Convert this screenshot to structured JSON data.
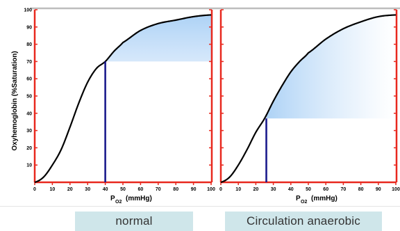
{
  "chart_data": [
    {
      "type": "line",
      "caption": "normal",
      "ylabel": "Oxyhemoglobin (%Saturation)",
      "xlabel": "PO2 (mmHg)",
      "xlabel_main": "P",
      "xlabel_sub": "O2",
      "xlabel_unit": "(mmHg)",
      "xlim": [
        0,
        100
      ],
      "ylim": [
        0,
        100
      ],
      "xticks": [
        0,
        10,
        20,
        30,
        40,
        50,
        60,
        70,
        80,
        90,
        100
      ],
      "yticks": [
        10,
        20,
        30,
        40,
        50,
        60,
        70,
        80,
        90,
        100
      ],
      "series": [
        {
          "values_x": [
            0,
            5,
            10,
            15,
            20,
            25,
            30,
            35,
            40,
            45,
            50,
            60,
            70,
            80,
            90,
            100
          ],
          "values_y": [
            0,
            3,
            10,
            19,
            32,
            46,
            58,
            66,
            70,
            76,
            81,
            88,
            92,
            94,
            96,
            97
          ]
        }
      ],
      "marker": {
        "x": 40,
        "y": 70
      },
      "shaded_region": {
        "x_start": 40,
        "y_floor": 70
      },
      "colors": {
        "curve": "#000000",
        "marker": "#1a1a8c",
        "axes": "#e8281e",
        "shade": "#a9d0f5"
      }
    },
    {
      "type": "line",
      "caption": "Circulation anaerobic",
      "xlabel": "PO2 (mmHg)",
      "xlabel_main": "P",
      "xlabel_sub": "O2",
      "xlabel_unit": "(mmHg)",
      "xlim": [
        0,
        100
      ],
      "ylim": [
        0,
        100
      ],
      "xticks": [
        0,
        10,
        20,
        30,
        40,
        50,
        60,
        70,
        80,
        90,
        100
      ],
      "series": [
        {
          "values_x": [
            0,
            5,
            10,
            15,
            20,
            25,
            30,
            35,
            40,
            45,
            50,
            60,
            70,
            80,
            90,
            100
          ],
          "values_y": [
            0,
            3,
            10,
            19,
            29,
            37,
            47,
            56,
            64,
            70,
            75,
            83,
            89,
            93,
            96,
            97
          ]
        }
      ],
      "marker": {
        "x": 26,
        "y": 37
      },
      "shaded_region": {
        "x_start": 26,
        "y_floor": 37
      },
      "colors": {
        "curve": "#000000",
        "marker": "#1a1a8c",
        "axes": "#e8281e",
        "shade": "#a9d0f5"
      }
    }
  ]
}
